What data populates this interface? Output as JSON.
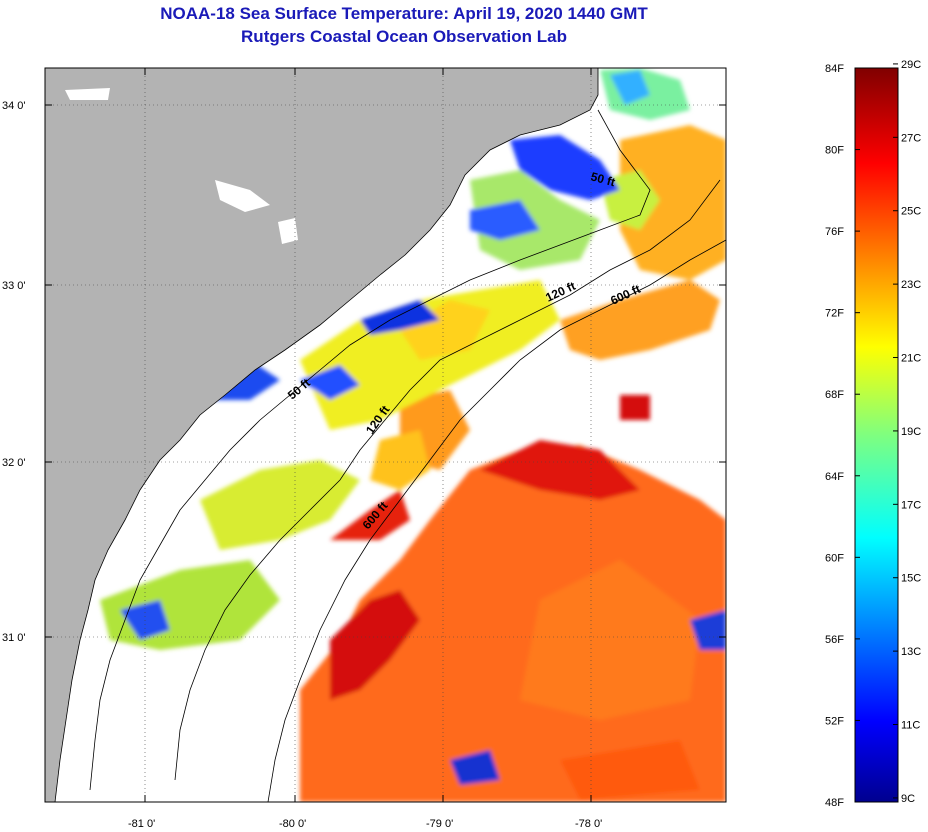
{
  "title": "NOAA-18 Sea Surface Temperature:  April 19, 2020 1440 GMT",
  "subtitle": "Rutgers Coastal Ocean Observation Lab",
  "map": {
    "lat_ticks": [
      "34 0'",
      "33 0'",
      "32 0'",
      "31 0'"
    ],
    "lon_ticks": [
      "-81 0'",
      "-80 0'",
      "-79 0'",
      "-78 0'"
    ],
    "isobath_labels": [
      "50 ft",
      "120 ft",
      "600 ft",
      "50 ft",
      "120 ft",
      "600 ft"
    ],
    "colors": {
      "land": "#b3b3b3",
      "cloud": "#ffffff",
      "coast_line": "#000000"
    }
  },
  "colorbar": {
    "fahrenheit": [
      "84F",
      "80F",
      "76F",
      "72F",
      "68F",
      "64F",
      "60F",
      "56F",
      "52F",
      "48F"
    ],
    "celsius": [
      "29C",
      "27C",
      "25C",
      "23C",
      "21C",
      "19C",
      "17C",
      "15C",
      "13C",
      "11C",
      "9C"
    ],
    "palette": "jet"
  }
}
